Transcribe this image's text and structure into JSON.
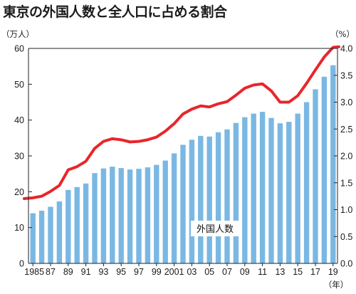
{
  "title": "東京の外国人数と全人口に占める割合",
  "chart_data": {
    "type": "bar",
    "title": "東京の外国人数と全人口に占める割合",
    "left_unit": "（万人）",
    "right_unit": "（%）",
    "x_unit": "（年）",
    "x_tick_labels": [
      "1985",
      "87",
      "89",
      "91",
      "93",
      "95",
      "97",
      "99",
      "2001",
      "03",
      "05",
      "07",
      "09",
      "11",
      "13",
      "15",
      "17",
      "19"
    ],
    "y_ticks": [
      "0",
      "10",
      "20",
      "30",
      "40",
      "50",
      "60"
    ],
    "y2_ticks": [
      "0.0",
      "0.5",
      "1.0",
      "1.5",
      "2.0",
      "2.5",
      "3.0",
      "3.5",
      "4.0"
    ],
    "ylim": [
      0,
      60
    ],
    "y2lim": [
      0,
      4.0
    ],
    "grid": false,
    "colors": {
      "bar": "#7ab8e3",
      "line": "#e8262b",
      "axis": "#222222"
    },
    "categories": [
      1985,
      1986,
      1987,
      1988,
      1989,
      1990,
      1991,
      1992,
      1993,
      1994,
      1995,
      1996,
      1997,
      1998,
      1999,
      2000,
      2001,
      2002,
      2003,
      2004,
      2005,
      2006,
      2007,
      2008,
      2009,
      2010,
      2011,
      2012,
      2013,
      2014,
      2015,
      2016,
      2017,
      2018,
      2019
    ],
    "series": [
      {
        "name": "外国人数",
        "type": "bar",
        "axis": "left",
        "values": [
          14.0,
          14.7,
          15.8,
          17.3,
          20.5,
          21.3,
          22.3,
          25.2,
          26.5,
          27.0,
          26.6,
          26.2,
          26.4,
          26.8,
          27.5,
          28.7,
          30.7,
          33.1,
          34.5,
          35.6,
          35.4,
          36.6,
          37.4,
          39.2,
          40.8,
          41.8,
          42.3,
          40.6,
          39.1,
          39.5,
          41.8,
          45.0,
          48.6,
          52.1,
          55.3
        ]
      },
      {
        "type": "line",
        "axis": "right",
        "values": [
          1.22,
          1.25,
          1.34,
          1.45,
          1.74,
          1.8,
          1.9,
          2.14,
          2.27,
          2.32,
          2.3,
          2.26,
          2.27,
          2.3,
          2.35,
          2.46,
          2.6,
          2.78,
          2.87,
          2.93,
          2.91,
          2.97,
          3.01,
          3.13,
          3.26,
          3.32,
          3.34,
          3.21,
          3.0,
          3.0,
          3.12,
          3.35,
          3.6,
          3.84,
          4.02
        ]
      }
    ]
  }
}
